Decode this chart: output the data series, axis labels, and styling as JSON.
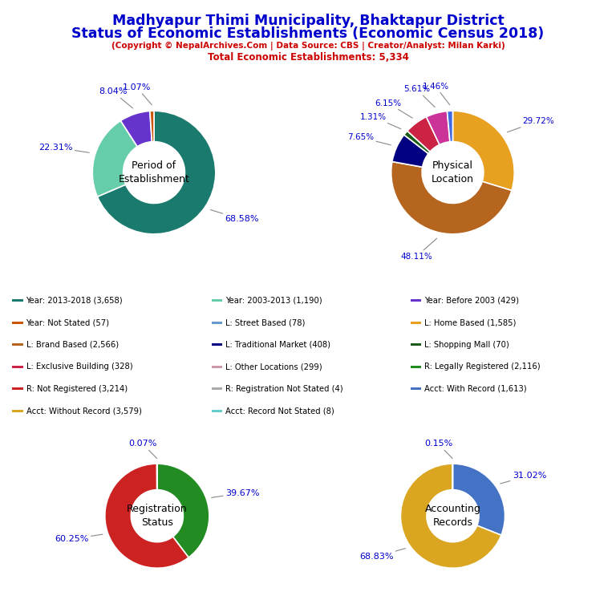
{
  "title_line1": "Madhyapur Thimi Municipality, Bhaktapur District",
  "title_line2": "Status of Economic Establishments (Economic Census 2018)",
  "subtitle": "(Copyright © NepalArchives.Com | Data Source: CBS | Creator/Analyst: Milan Karki)",
  "total_line": "Total Economic Establishments: 5,334",
  "title_color": "#0000CC",
  "subtitle_color": "#CC0000",
  "pct_color": "#0000CC",
  "background_color": "#FFFFFF",
  "pie1": {
    "label": "Period of\nEstablishment",
    "values": [
      68.58,
      22.31,
      8.04,
      1.07
    ],
    "colors": [
      "#1a7a6e",
      "#66cdaa",
      "#6633cc",
      "#cc5500"
    ],
    "pcts": [
      "68.58%",
      "22.31%",
      "8.04%",
      "1.07%"
    ],
    "startangle": 90
  },
  "pie2": {
    "label": "Physical\nLocation",
    "values": [
      29.72,
      48.11,
      7.65,
      1.31,
      6.15,
      5.61,
      1.46
    ],
    "colors": [
      "#E8A020",
      "#b5651d",
      "#000080",
      "#1a5c1a",
      "#cc2244",
      "#cc3399",
      "#4169e1"
    ],
    "pcts": [
      "29.72%",
      "48.11%",
      "7.65%",
      "1.31%",
      "6.15%",
      "5.61%",
      "1.46%"
    ],
    "startangle": 90
  },
  "pie3": {
    "label": "Registration\nStatus",
    "values": [
      39.67,
      60.25,
      0.07
    ],
    "colors": [
      "#228B22",
      "#CC2222",
      "#AAAAAA"
    ],
    "pcts": [
      "39.67%",
      "60.25%",
      "0.07%"
    ],
    "startangle": 90
  },
  "pie4": {
    "label": "Accounting\nRecords",
    "values": [
      31.02,
      68.83,
      0.15
    ],
    "colors": [
      "#4472C4",
      "#DAA520",
      "#66CDAA"
    ],
    "pcts": [
      "31.02%",
      "68.83%",
      "0.15%"
    ],
    "startangle": 90
  },
  "legend_items": [
    {
      "label": "Year: 2013-2018 (3,658)",
      "color": "#1a7a6e"
    },
    {
      "label": "Year: 2003-2013 (1,190)",
      "color": "#66cdaa"
    },
    {
      "label": "Year: Before 2003 (429)",
      "color": "#6633cc"
    },
    {
      "label": "Year: Not Stated (57)",
      "color": "#cc5500"
    },
    {
      "label": "L: Street Based (78)",
      "color": "#6699cc"
    },
    {
      "label": "L: Home Based (1,585)",
      "color": "#E8A020"
    },
    {
      "label": "L: Brand Based (2,566)",
      "color": "#b5651d"
    },
    {
      "label": "L: Traditional Market (408)",
      "color": "#000080"
    },
    {
      "label": "L: Shopping Mall (70)",
      "color": "#1a5c1a"
    },
    {
      "label": "L: Exclusive Building (328)",
      "color": "#cc2244"
    },
    {
      "label": "L: Other Locations (299)",
      "color": "#cc99aa"
    },
    {
      "label": "R: Legally Registered (2,116)",
      "color": "#228B22"
    },
    {
      "label": "R: Not Registered (3,214)",
      "color": "#CC2222"
    },
    {
      "label": "R: Registration Not Stated (4)",
      "color": "#AAAAAA"
    },
    {
      "label": "Acct: Without Record (3,579)",
      "color": "#DAA520"
    },
    {
      "label": "Acct: Record Not Stated (8)",
      "color": "#66CCCC"
    },
    {
      "label": "Acct: With Record (1,613)",
      "color": "#4472C4"
    }
  ]
}
